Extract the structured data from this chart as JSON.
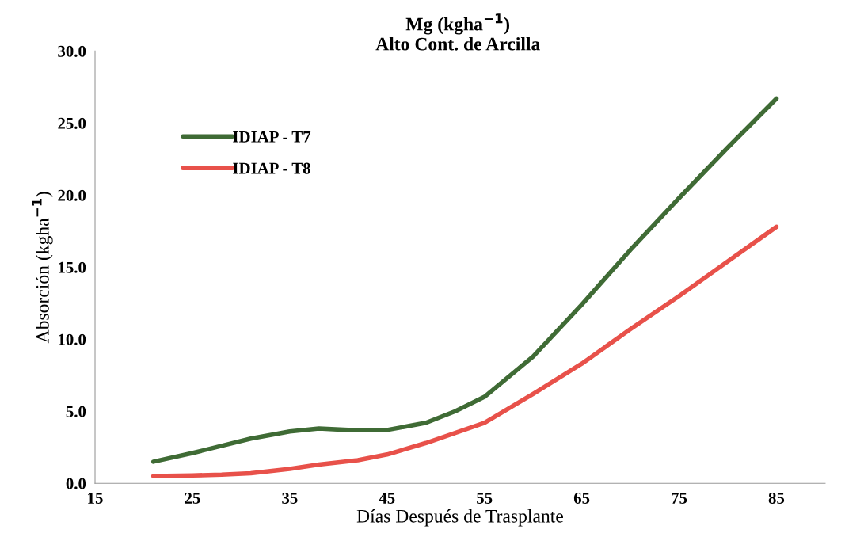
{
  "chart_data": {
    "type": "line",
    "title": "Mg (kgha$^{−1}$)",
    "subtitle": "Alto Cont. de Arcilla",
    "xlabel": "Días Después de Trasplante",
    "ylabel": "Absorción (kgha$^{−1}$)",
    "series": [
      {
        "name": "IDIAP - T7",
        "color": "#3f6b35",
        "x": [
          21,
          25,
          28,
          31,
          35,
          38,
          41,
          45,
          49,
          52,
          55,
          60,
          65,
          70,
          75,
          80,
          85
        ],
        "values": [
          1.5,
          2.1,
          2.6,
          3.1,
          3.6,
          3.8,
          3.7,
          3.7,
          4.2,
          5.0,
          6.0,
          8.8,
          12.4,
          16.2,
          19.8,
          23.3,
          26.7
        ]
      },
      {
        "name": "IDIAP - T8",
        "color": "#e8514a",
        "x": [
          21,
          25,
          28,
          31,
          35,
          38,
          42,
          45,
          49,
          52,
          55,
          60,
          65,
          70,
          75,
          80,
          85
        ],
        "values": [
          0.5,
          0.55,
          0.6,
          0.7,
          1.0,
          1.3,
          1.6,
          2.0,
          2.8,
          3.5,
          4.2,
          6.2,
          8.3,
          10.7,
          13.0,
          15.4,
          17.8
        ]
      }
    ],
    "xlim": [
      15,
      90
    ],
    "xticks": [
      15,
      25,
      35,
      45,
      55,
      65,
      75,
      85
    ],
    "ylim": [
      0,
      30
    ],
    "yticks": [
      {
        "value": 0,
        "label": "0.0"
      },
      {
        "value": 5,
        "label": "5.0"
      },
      {
        "value": 10,
        "label": "10.0"
      },
      {
        "value": 15,
        "label": "15.0"
      },
      {
        "value": 20,
        "label": "20.0"
      },
      {
        "value": 25,
        "label": "25.0"
      },
      {
        "value": 30,
        "label": "30.0"
      }
    ],
    "legend": "upper left",
    "grid": false,
    "marker": "none",
    "line_style": "solid"
  }
}
